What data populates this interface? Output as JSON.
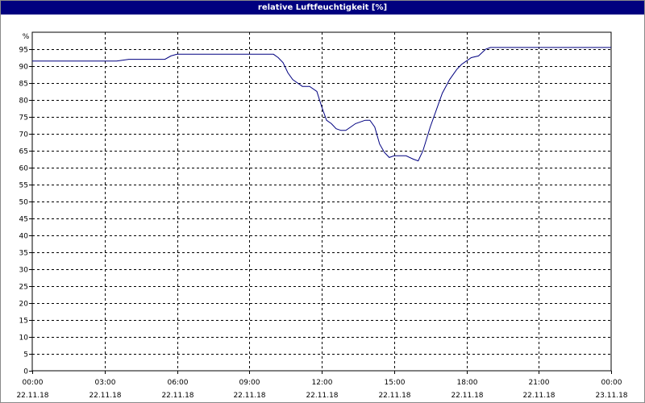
{
  "window": {
    "title": "relative Luftfeuchtigkeit [%]"
  },
  "chart_data": {
    "type": "line",
    "title": "relative Luftfeuchtigkeit [%]",
    "ylabel": "%",
    "xlabel": "",
    "ylim": [
      0,
      100
    ],
    "yticks": [
      0,
      5,
      10,
      15,
      20,
      25,
      30,
      35,
      40,
      45,
      50,
      55,
      60,
      65,
      70,
      75,
      80,
      85,
      90,
      95
    ],
    "xlim": [
      0,
      24
    ],
    "xticks": [
      {
        "x": 0,
        "time": "00:00",
        "date": "22.11.18"
      },
      {
        "x": 3,
        "time": "03:00",
        "date": "22.11.18"
      },
      {
        "x": 6,
        "time": "06:00",
        "date": "22.11.18"
      },
      {
        "x": 9,
        "time": "09:00",
        "date": "22.11.18"
      },
      {
        "x": 12,
        "time": "12:00",
        "date": "22.11.18"
      },
      {
        "x": 15,
        "time": "15:00",
        "date": "22.11.18"
      },
      {
        "x": 18,
        "time": "18:00",
        "date": "22.11.18"
      },
      {
        "x": 21,
        "time": "21:00",
        "date": "22.11.18"
      },
      {
        "x": 24,
        "time": "00:00",
        "date": "23.11.18"
      }
    ],
    "grid": true,
    "series": [
      {
        "color": "#000080",
        "x": [
          0,
          1,
          2,
          3,
          3.5,
          4,
          4.5,
          5,
          5.5,
          5.75,
          6,
          7,
          8,
          9,
          9.5,
          10,
          10.2,
          10.4,
          10.6,
          10.8,
          11,
          11.2,
          11.5,
          11.8,
          12,
          12.2,
          12.4,
          12.6,
          12.8,
          13,
          13.2,
          13.4,
          13.6,
          13.8,
          14,
          14.2,
          14.4,
          14.6,
          14.8,
          15,
          15.2,
          15.5,
          15.8,
          16,
          16.2,
          16.5,
          16.8,
          17,
          17.3,
          17.6,
          17.8,
          18,
          18.2,
          18.5,
          18.8,
          19,
          19.5,
          20,
          21,
          22,
          23,
          24
        ],
        "y": [
          91.5,
          91.5,
          91.5,
          91.5,
          91.5,
          92,
          92,
          92,
          92,
          93,
          93.5,
          93.5,
          93.5,
          93.5,
          93.5,
          93.5,
          92.5,
          91,
          88,
          86,
          85,
          84,
          84,
          82.5,
          78,
          74,
          73,
          71.5,
          71,
          71,
          72,
          73,
          73.5,
          74,
          74,
          72,
          67,
          64.5,
          63,
          63.5,
          63.5,
          63.5,
          62.5,
          62,
          65,
          72,
          78,
          82,
          86,
          89,
          90.5,
          91.5,
          92.5,
          93,
          95,
          95.5,
          95.5,
          95.5,
          95.5,
          95.5,
          95.5,
          95.5
        ]
      }
    ]
  }
}
